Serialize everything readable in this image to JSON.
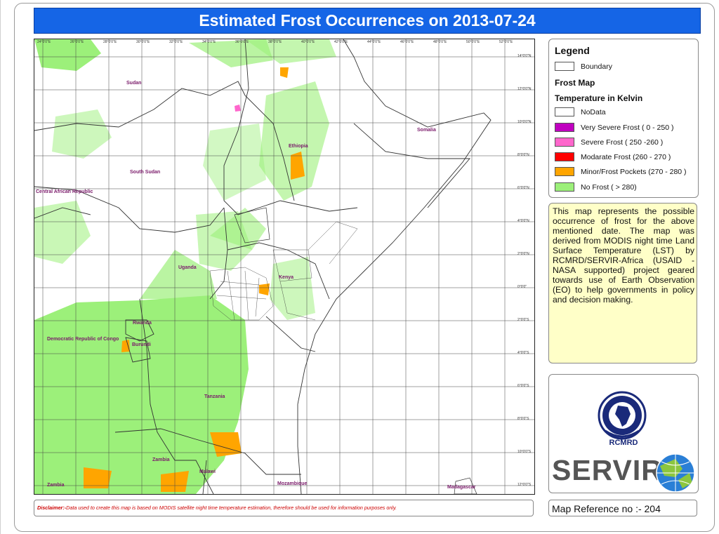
{
  "title": "Estimated Frost Occurrences on 2013-07-24",
  "legend": {
    "heading": "Legend",
    "boundary_label": "Boundary",
    "frost_map_label": "Frost Map",
    "temperature_label": "Temperature in Kelvin",
    "classes": [
      {
        "label": "NoData",
        "color": "#ffffff"
      },
      {
        "label": "Very Severe Frost ( 0 - 250 )",
        "color": "#c000c0"
      },
      {
        "label": "Severe Frost ( 250 -260 )",
        "color": "#ff66cc"
      },
      {
        "label": "Modarate Frost (260 - 270 )",
        "color": "#ff0000"
      },
      {
        "label": "Minor/Frost Pockets (270 - 280 )",
        "color": "#ffa500"
      },
      {
        "label": "No Frost ( > 280)",
        "color": "#9cf07a"
      }
    ]
  },
  "description": "This map represents the possible occurrence of frost for the above mentioned date. The map was derived from MODIS night time Land Surface Temperature (LST) by RCMRD/SERVIR-Africa (USAID - NASA supported) project geared towards use of Earth Observation (EO) to help governments in policy and decision making.",
  "logos": {
    "rcmrd": "RCMRD",
    "servir": "SERVIR"
  },
  "disclaimer": {
    "label": "Disclaimer:-",
    "text": "Data used to create this map is based on MODIS satellite night time temperature estimation, therefore should be used for information purposes only."
  },
  "map_reference": "Map Reference no :- 204",
  "map": {
    "countries": [
      "Sudan",
      "Ethiopia",
      "Somalia",
      "South Sudan",
      "Central African Republic",
      "Uganda",
      "Kenya",
      "Rwanda",
      "Burundi",
      "Democratic Republic of Congo",
      "Tanzania",
      "Zambia",
      "Malawi",
      "Mozambique",
      "Madagascar",
      "Zambia"
    ],
    "lon_ticks": [
      "24°0'0\"E",
      "26°0'0\"E",
      "28°0'0\"E",
      "30°0'0\"E",
      "32°0'0\"E",
      "34°0'0\"E",
      "36°0'0\"E",
      "38°0'0\"E",
      "40°0'0\"E",
      "42°0'0\"E",
      "44°0'0\"E",
      "46°0'0\"E",
      "48°0'0\"E",
      "50°0'0\"E",
      "52°0'0\"E"
    ],
    "lat_ticks": [
      "14°0'0\"N",
      "12°0'0\"N",
      "10°0'0\"N",
      "8°0'0\"N",
      "6°0'0\"N",
      "4°0'0\"N",
      "2°0'0\"N",
      "0°0'0\"",
      "2°0'0\"S",
      "4°0'0\"S",
      "6°0'0\"S",
      "8°0'0\"S",
      "10°0'0\"S",
      "12°0'0\"S"
    ]
  }
}
